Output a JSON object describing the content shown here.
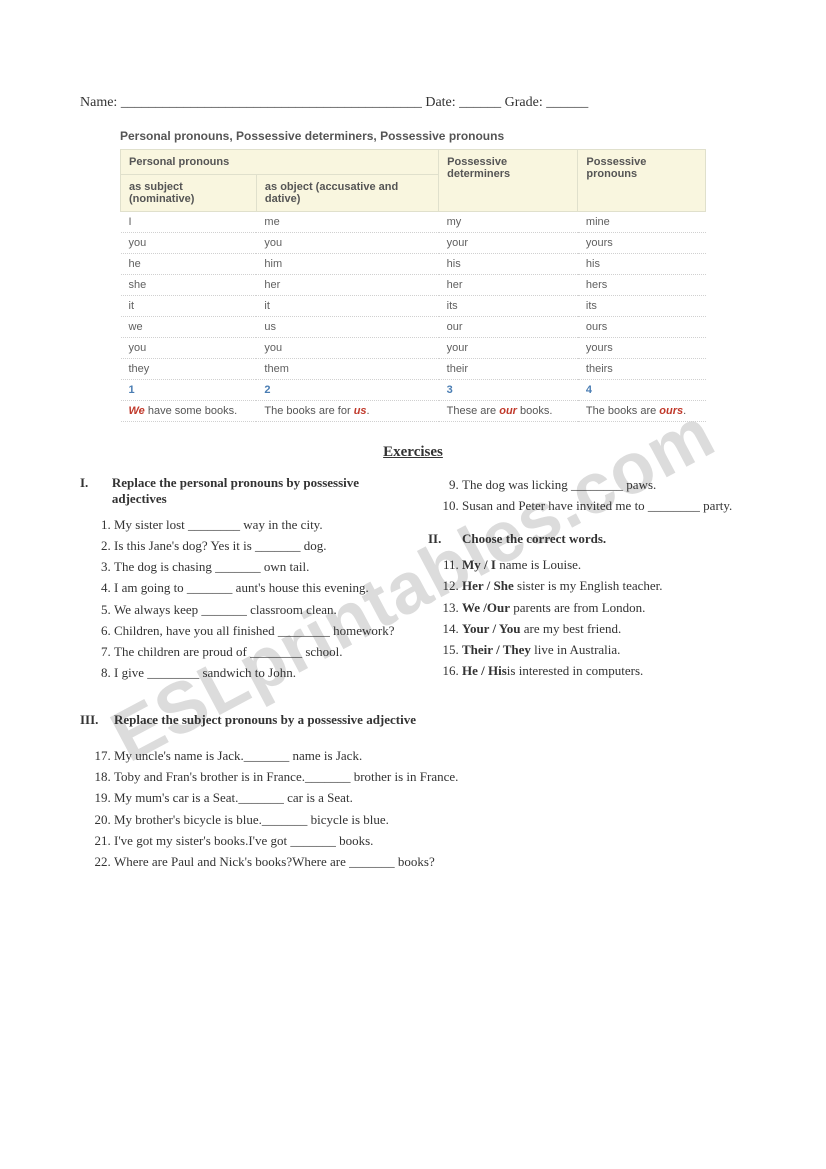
{
  "watermark": "ESLprintables.com",
  "header": {
    "name_label": "Name:",
    "date_label": "Date:",
    "grade_label": "Grade:"
  },
  "table": {
    "title": "Personal pronouns, Possessive determiners, Possessive pronouns",
    "header_group": "Personal pronouns",
    "headers": {
      "col1": "as subject (nominative)",
      "col2": "as object (accusative and dative)",
      "col3": "Possessive determiners",
      "col4": "Possessive pronouns"
    },
    "rows": [
      [
        "I",
        "me",
        "my",
        "mine"
      ],
      [
        "you",
        "you",
        "your",
        "yours"
      ],
      [
        "he",
        "him",
        "his",
        "his"
      ],
      [
        "she",
        "her",
        "her",
        "hers"
      ],
      [
        "it",
        "it",
        "its",
        "its"
      ],
      [
        "we",
        "us",
        "our",
        "ours"
      ],
      [
        "you",
        "you",
        "your",
        "yours"
      ],
      [
        "they",
        "them",
        "their",
        "theirs"
      ]
    ],
    "num_row": [
      "1",
      "2",
      "3",
      "4"
    ],
    "examples": {
      "c1_pre": "We",
      "c1_post": " have some books.",
      "c2_pre": "The books are for ",
      "c2_em": "us",
      "c2_post": ".",
      "c3_pre": "These are ",
      "c3_em": "our",
      "c3_post": " books.",
      "c4_pre": "The books are ",
      "c4_em": "ours",
      "c4_post": "."
    }
  },
  "exercises_title": "Exercises",
  "section1": {
    "num": "I.",
    "title": "Replace the personal pronouns by possessive adjectives",
    "items_a": [
      "My sister lost ________ way in the city.",
      "Is this Jane's dog? Yes it is _______ dog.",
      "The dog is chasing _______ own tail.",
      "I am going to _______ aunt's house this evening.",
      "We always keep _______ classroom clean.",
      "Children, have you all finished ________ homework?",
      "The children are proud of ________ school.",
      "I give ________ sandwich to John."
    ],
    "items_b": [
      "The dog was licking ________ paws.",
      "Susan and Peter have invited me to ________ party."
    ]
  },
  "section2": {
    "num": "II.",
    "title": "Choose the correct words.",
    "items": [
      {
        "bold": "My / I",
        "rest": " name is Louise."
      },
      {
        "bold": "Her / She",
        "rest": " sister is my English teacher."
      },
      {
        "bold": "We /Our",
        "rest": " parents are from London."
      },
      {
        "bold": "Your / You",
        "rest": " are my best friend."
      },
      {
        "bold": "Their / They",
        "rest": " live in Australia."
      },
      {
        "bold": "He / His",
        "rest": "is interested in computers."
      }
    ]
  },
  "section3": {
    "num": "III.",
    "title": "Replace the subject pronouns by a possessive adjective",
    "items": [
      "My uncle's name is Jack._______ name is Jack.",
      "Toby and Fran's brother is in France._______ brother is in France.",
      "My mum's car is a Seat._______ car is a Seat.",
      "My brother's bicycle is blue._______ bicycle is blue.",
      "I've got my sister's books.I've got _______ books.",
      "Where are Paul and Nick's books?Where are _______ books?"
    ]
  },
  "colors": {
    "bg": "#ffffff",
    "text": "#333333",
    "table_header_bg": "#f9f6df",
    "table_border": "#e0e0cc",
    "row_divider": "#d0d0d0",
    "num_blue": "#4a7db3",
    "red": "#c0392b",
    "watermark": "#dcdcdc"
  }
}
